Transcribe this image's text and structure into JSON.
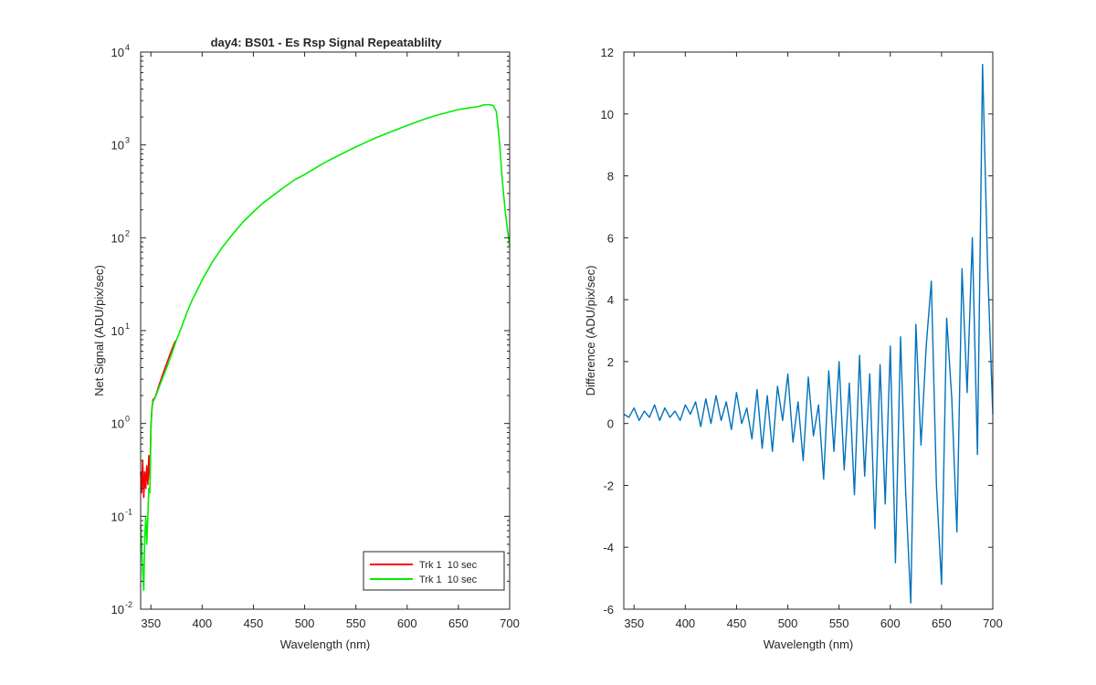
{
  "figure": {
    "background": "#ffffff"
  },
  "chart_data": [
    {
      "type": "line",
      "title": "day4: BS01 - Es Rsp Signal Repeatablilty",
      "xlabel": "Wavelength (nm)",
      "ylabel": "Net Signal (ADU/pix/sec)",
      "xlim": [
        340,
        700
      ],
      "ylim_log10": [
        -2,
        4
      ],
      "yscale": "log",
      "x_ticks": [
        350,
        400,
        450,
        500,
        550,
        600,
        650,
        700
      ],
      "x_tick_labels": [
        "350",
        "400",
        "450",
        "500",
        "550",
        "600",
        "650",
        "700"
      ],
      "y_tick_exponents": [
        -2,
        -1,
        0,
        1,
        2,
        3,
        4
      ],
      "y_tick_base": "10",
      "y_tick_labels": [
        "-2",
        "-1",
        "0",
        "1",
        "2",
        "3",
        "4"
      ],
      "grid": false,
      "legend": "bottom-right",
      "series": [
        {
          "name": "Trk 1  10 sec",
          "color": "#ff0000",
          "x": [
            340,
            341,
            342,
            343,
            344,
            345,
            346,
            347,
            348,
            349,
            350,
            351,
            352,
            354,
            356,
            358,
            360,
            362,
            365,
            368,
            371,
            374
          ],
          "y": [
            0.3,
            0.18,
            0.4,
            0.16,
            0.3,
            0.2,
            0.35,
            0.22,
            0.45,
            0.25,
            0.9,
            1.4,
            1.8,
            1.9,
            2.2,
            2.6,
            3.0,
            3.5,
            4.3,
            5.3,
            6.5,
            7.8
          ]
        },
        {
          "name": "Trk 1  10 sec",
          "color": "#00ee00",
          "x": [
            340,
            341,
            342,
            343,
            344,
            345,
            346,
            347,
            348,
            349,
            350,
            351,
            352,
            355,
            360,
            365,
            370,
            375,
            380,
            385,
            390,
            395,
            400,
            410,
            420,
            430,
            440,
            450,
            460,
            470,
            480,
            490,
            500,
            510,
            520,
            530,
            540,
            550,
            560,
            570,
            580,
            590,
            600,
            610,
            620,
            630,
            640,
            650,
            660,
            670,
            675,
            680,
            684,
            687,
            690,
            693,
            696,
            700
          ],
          "y": [
            0.08,
            0.05,
            0.025,
            0.016,
            0.06,
            0.1,
            0.05,
            0.1,
            0.2,
            0.18,
            0.8,
            1.5,
            1.7,
            2.0,
            2.8,
            3.9,
            5.5,
            8.0,
            11,
            15.5,
            21,
            27,
            35,
            55,
            80,
            110,
            148,
            190,
            240,
            290,
            350,
            420,
            480,
            560,
            650,
            740,
            840,
            950,
            1070,
            1200,
            1330,
            1470,
            1620,
            1780,
            1950,
            2100,
            2250,
            2400,
            2500,
            2600,
            2700,
            2720,
            2650,
            2300,
            1100,
            400,
            180,
            80
          ]
        }
      ]
    },
    {
      "type": "line",
      "xlabel": "Wavelength (nm)",
      "ylabel": "Difference (ADU/pix/sec)",
      "xlim": [
        340,
        700
      ],
      "ylim": [
        -6,
        12
      ],
      "x_ticks": [
        350,
        400,
        450,
        500,
        550,
        600,
        650,
        700
      ],
      "x_tick_labels": [
        "350",
        "400",
        "450",
        "500",
        "550",
        "600",
        "650",
        "700"
      ],
      "y_ticks": [
        -6,
        -4,
        -2,
        0,
        2,
        4,
        6,
        8,
        10,
        12
      ],
      "y_tick_labels": [
        "-6",
        "-4",
        "-2",
        "0",
        "2",
        "4",
        "6",
        "8",
        "10",
        "12"
      ],
      "grid": false,
      "series": [
        {
          "color": "#0072bd",
          "x": [
            340,
            345,
            350,
            355,
            360,
            365,
            370,
            375,
            380,
            385,
            390,
            395,
            400,
            405,
            410,
            415,
            420,
            425,
            430,
            435,
            440,
            445,
            450,
            455,
            460,
            465,
            470,
            475,
            480,
            485,
            490,
            495,
            500,
            505,
            510,
            515,
            520,
            525,
            530,
            535,
            540,
            545,
            550,
            555,
            560,
            565,
            570,
            575,
            580,
            585,
            590,
            595,
            600,
            605,
            610,
            615,
            620,
            625,
            630,
            635,
            640,
            645,
            650,
            655,
            660,
            665,
            670,
            675,
            680,
            685,
            690,
            695,
            700
          ],
          "y": [
            0.3,
            0.2,
            0.5,
            0.1,
            0.4,
            0.2,
            0.6,
            0.1,
            0.5,
            0.2,
            0.4,
            0.1,
            0.6,
            0.3,
            0.7,
            -0.1,
            0.8,
            0.0,
            0.9,
            0.1,
            0.7,
            -0.2,
            1.0,
            0.0,
            0.5,
            -0.5,
            1.1,
            -0.8,
            0.9,
            -0.9,
            1.2,
            0.1,
            1.6,
            -0.6,
            0.7,
            -1.2,
            1.5,
            -0.4,
            0.6,
            -1.8,
            1.7,
            -0.9,
            2.0,
            -1.5,
            1.3,
            -2.3,
            2.2,
            -1.7,
            1.6,
            -3.4,
            1.9,
            -2.6,
            2.5,
            -4.5,
            2.8,
            -2.2,
            -5.8,
            3.2,
            -0.7,
            2.5,
            4.6,
            -2.0,
            -5.2,
            3.4,
            0.8,
            -3.5,
            5.0,
            1.0,
            6.0,
            -1.0,
            11.6,
            5.0,
            0.3
          ]
        }
      ]
    }
  ]
}
